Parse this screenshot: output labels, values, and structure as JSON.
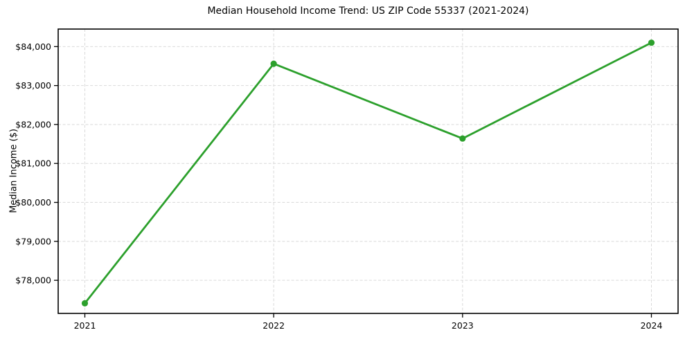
{
  "chart_data": {
    "type": "line",
    "title": "Median Household Income Trend: US ZIP Code 55337 (2021-2024)",
    "xlabel": "",
    "ylabel": "Median Income ($)",
    "categories": [
      "2021",
      "2022",
      "2023",
      "2024"
    ],
    "values": [
      77410,
      83560,
      81640,
      84100
    ],
    "ylim": [
      77150,
      84450
    ],
    "yticks": [
      78000,
      79000,
      80000,
      81000,
      82000,
      83000,
      84000
    ],
    "ytick_labels": [
      "$78,000",
      "$79,000",
      "$80,000",
      "$81,000",
      "$82,000",
      "$83,000",
      "$84,000"
    ],
    "xtick_labels": [
      "2021",
      "2022",
      "2023",
      "2024"
    ],
    "grid": true,
    "grid_style": "dashed",
    "legend": "none",
    "line_color": "#2ca02c",
    "marker_color": "#2ca02c",
    "grid_color": "#d9d9d9",
    "spine_color": "#000000",
    "text_color": "#000000"
  }
}
